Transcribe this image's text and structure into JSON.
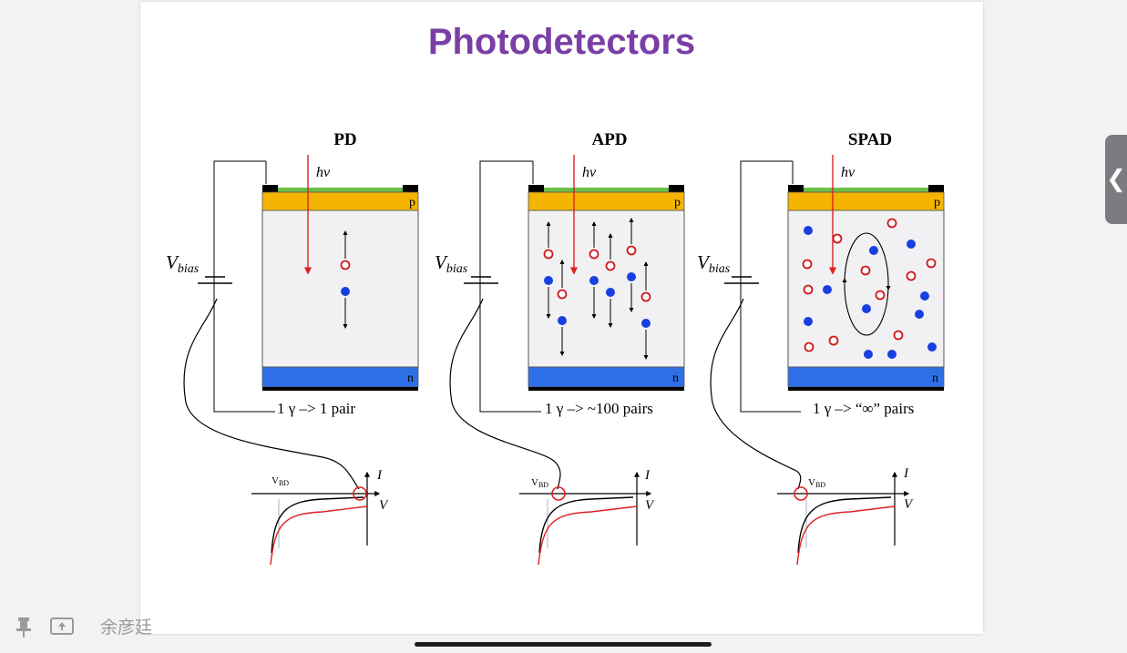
{
  "slide": {
    "title": "Photodetectors"
  },
  "panels": [
    {
      "title": "PD",
      "caption": "1 γ –> 1 pair"
    },
    {
      "title": "APD",
      "caption": "1 γ –> ~100 pairs"
    },
    {
      "title": "SPAD",
      "caption": "1 γ –> “∞” pairs"
    }
  ],
  "labels": {
    "photon": "hν",
    "vbias_main": "V",
    "vbias_sub": "bias",
    "p_layer": "p",
    "n_layer": "n",
    "iv_current": "I",
    "iv_voltage": "V",
    "vbd_main": "V",
    "vbd_sub": "BD"
  },
  "colors": {
    "title": "#7a3fa6",
    "p_layer": "#f4b400",
    "n_layer": "#2f6fe6",
    "contact_strip": "#6dbe45",
    "photon_arrow": "#e02020",
    "electron": "#1a3fe0",
    "hole": "#d01818",
    "iv_dark": "#000000",
    "iv_light": "#e02020"
  },
  "overlay": {
    "presenter_name": "余彦廷",
    "pin_icon": "pin-icon",
    "screen_icon": "screen-share-icon",
    "side_tab_icon": "chevron-left-icon"
  }
}
